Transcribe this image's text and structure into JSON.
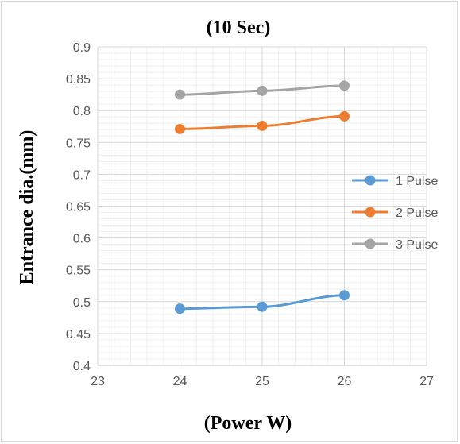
{
  "chart_data": {
    "type": "line",
    "title": "(10 Sec)",
    "xlabel": "(Power W)",
    "ylabel": "Entrance dia.(mm)",
    "x": [
      24,
      25,
      26
    ],
    "xlim": [
      23,
      27
    ],
    "ylim": [
      0.4,
      0.9
    ],
    "x_ticks": [
      "23",
      "24",
      "25",
      "26",
      "27"
    ],
    "y_ticks": [
      "0.4",
      "0.45",
      "0.5",
      "0.55",
      "0.6",
      "0.65",
      "0.7",
      "0.75",
      "0.8",
      "0.85",
      "0.9"
    ],
    "grid": true,
    "legend_position": "right",
    "series": [
      {
        "name": "1 Pulse",
        "color": "#5B9BD5",
        "values": [
          0.489,
          0.492,
          0.51
        ]
      },
      {
        "name": "2 Pulse",
        "color": "#ED7D31",
        "values": [
          0.771,
          0.776,
          0.791
        ]
      },
      {
        "name": "3 Pulse",
        "color": "#A5A5A5",
        "values": [
          0.825,
          0.831,
          0.839
        ]
      }
    ]
  }
}
